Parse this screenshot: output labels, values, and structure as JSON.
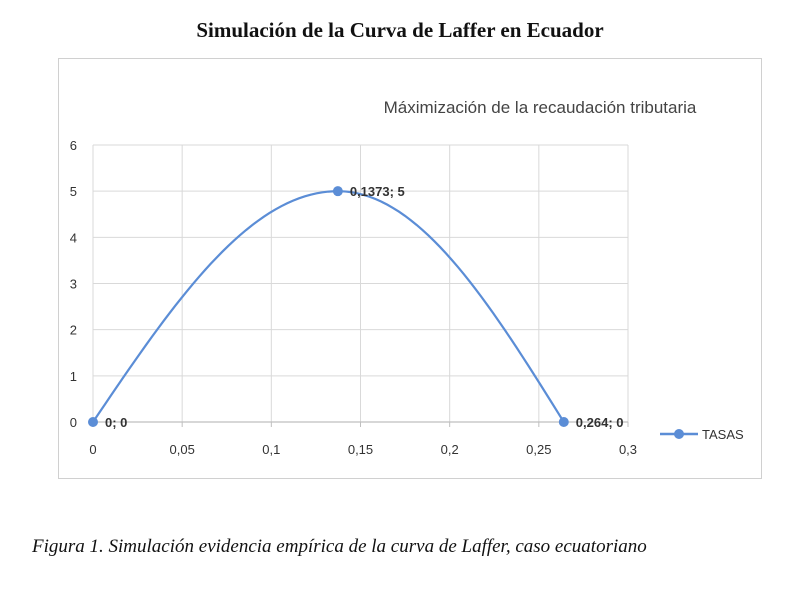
{
  "document": {
    "title": "Simulación de la Curva de Laffer en Ecuador",
    "caption": "Figura 1. Simulación evidencia empírica de la curva de Laffer, caso ecuatoriano"
  },
  "chart_data": {
    "type": "line",
    "title": "Máximización de la recaudación tributaria",
    "xlabel": "",
    "ylabel": "",
    "xlim": [
      0,
      0.3
    ],
    "ylim": [
      0,
      6
    ],
    "x_ticks": [
      "0",
      "0,05",
      "0,1",
      "0,15",
      "0,2",
      "0,25",
      "0,3"
    ],
    "y_ticks": [
      "0",
      "1",
      "2",
      "3",
      "4",
      "5",
      "6"
    ],
    "grid": true,
    "legend_position": "right",
    "smooth": true,
    "series": [
      {
        "name": "TASAS",
        "color": "#5b8dd6",
        "points": [
          {
            "x": 0,
            "y": 0,
            "label": "0; 0"
          },
          {
            "x": 0.1373,
            "y": 5,
            "label": "0,1373; 5"
          },
          {
            "x": 0.264,
            "y": 0,
            "label": "0,264; 0"
          }
        ]
      }
    ]
  }
}
